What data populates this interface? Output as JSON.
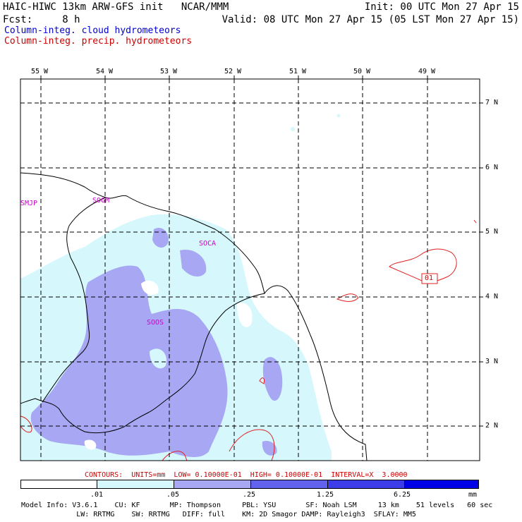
{
  "header": {
    "line1_left": "HAIC-HIWC 13km ARW-GFS init   NCAR/MMM",
    "line1_right": "Init: 00 UTC Mon 27 Apr 15",
    "line2_left": "Fcst:     8 h",
    "line2_right": "Valid: 08 UTC Mon 27 Apr 15 (05 LST Mon 27 Apr 15)",
    "legend_cloud": "Column-integ. cloud hydrometeors",
    "legend_precip": "Column-integ. precip. hydrometeors"
  },
  "colors": {
    "cloud_text": "#0000cc",
    "precip_text": "#cc0000",
    "fill_light": "#d6f8fc",
    "fill_medium": "#a7a7f3",
    "fill_dark": "#6262ee",
    "fill_darkest": "#0000e6",
    "coast": "#000000",
    "precip_contour": "#e02020",
    "station": "#cc00cc"
  },
  "map": {
    "lon_labels": [
      "55 W",
      "54 W",
      "53 W",
      "52 W",
      "51 W",
      "50 W",
      "49 W"
    ],
    "lat_labels": [
      "7 N",
      "6 N",
      "5 N",
      "4 N",
      "3 N",
      "2 N"
    ],
    "stations": [
      "SMJP",
      "SOGM",
      "SOCA",
      "SOOS"
    ],
    "contour_label": "01"
  },
  "colorbar": {
    "contours_line": "CONTOURS:  UNITS=mm  LOW= 0.10000E-01  HIGH= 0.10000E-01  INTERVAL=X  3.0000",
    "ticks": [
      ".01",
      ".05",
      ".25",
      "1.25",
      "6.25"
    ],
    "units": "mm"
  },
  "footer": {
    "line1": "Model Info: V3.6.1    CU: KF       MP: Thompson     PBL: YSU       SF: Noah LSM     13 km    51 levels   60 sec",
    "line2": "             LW: RRTMG    SW: RRTMG   DIFF: full    KM: 2D Smagor DAMP: Rayleigh3  SFLAY: MM5"
  }
}
